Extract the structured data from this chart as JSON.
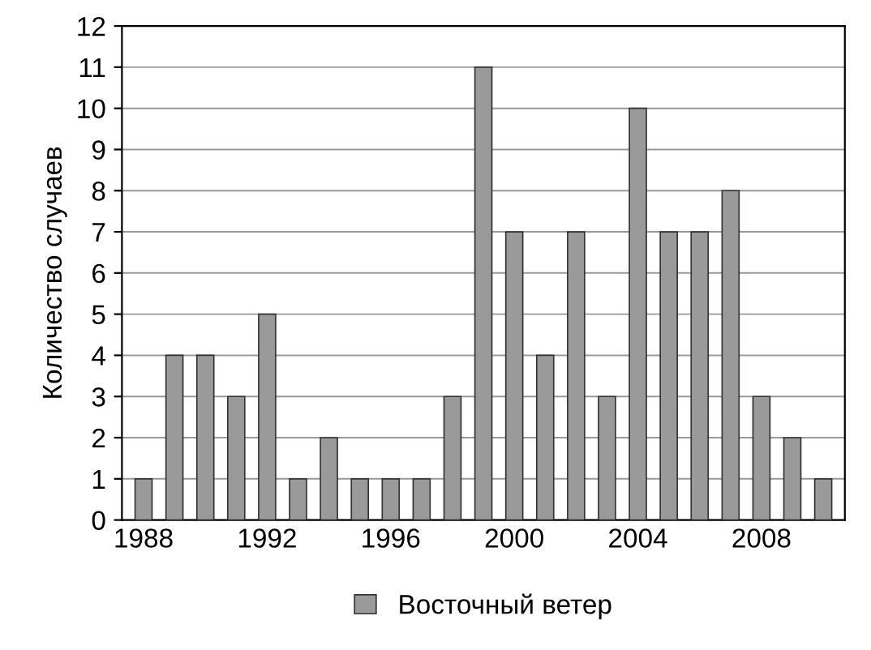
{
  "chart_data": {
    "type": "bar",
    "ylabel": "Количество случаев",
    "categories": [
      "1988",
      null,
      null,
      null,
      "1992",
      null,
      null,
      null,
      "1996",
      null,
      null,
      null,
      "2000",
      null,
      null,
      null,
      "2004",
      null,
      null,
      null,
      "2008",
      null,
      null
    ],
    "series": [
      {
        "name": "Восточный ветер",
        "color": "#9a9a9a",
        "values": [
          1,
          4,
          4,
          3,
          5,
          1,
          2,
          1,
          1,
          1,
          3,
          11,
          7,
          4,
          7,
          3,
          10,
          7,
          7,
          8,
          3,
          2,
          1
        ]
      }
    ],
    "ylim": [
      0,
      12
    ],
    "yticks": [
      0,
      1,
      2,
      3,
      4,
      5,
      6,
      7,
      8,
      9,
      10,
      11,
      12
    ],
    "grid": "y",
    "legend": "bottom"
  }
}
